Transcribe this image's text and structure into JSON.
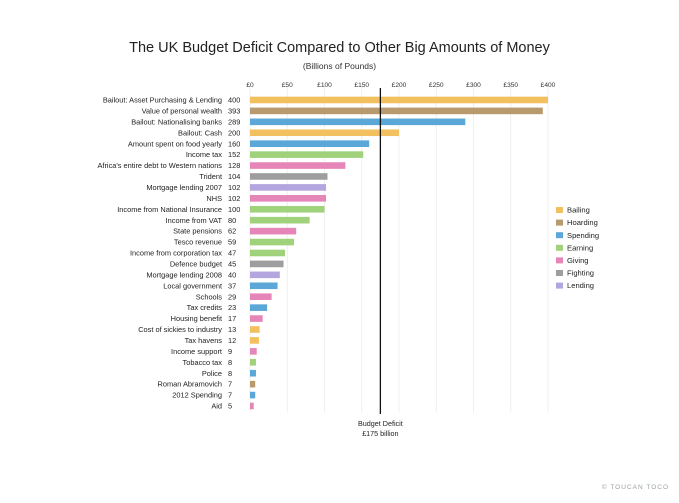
{
  "chart_data": {
    "type": "bar",
    "orientation": "horizontal",
    "title": "The UK Budget Deficit Compared to Other Big Amounts of Money",
    "subtitle": "(Billions of Pounds)",
    "xlim": [
      0,
      400
    ],
    "xticks": [
      {
        "value": 0,
        "label": "£0"
      },
      {
        "value": 50,
        "label": "£50"
      },
      {
        "value": 100,
        "label": "£100"
      },
      {
        "value": 150,
        "label": "£150"
      },
      {
        "value": 200,
        "label": "£200"
      },
      {
        "value": 250,
        "label": "£250"
      },
      {
        "value": 300,
        "label": "£300"
      },
      {
        "value": 350,
        "label": "£350"
      },
      {
        "value": 400,
        "label": "£400"
      }
    ],
    "grid": true,
    "legend_position": "right",
    "groups": [
      {
        "name": "Bailing",
        "color": "#f3c05f"
      },
      {
        "name": "Hoarding",
        "color": "#b89a6e"
      },
      {
        "name": "Spending",
        "color": "#5aa7d8"
      },
      {
        "name": "Earning",
        "color": "#9fd27a"
      },
      {
        "name": "Giving",
        "color": "#e685b8"
      },
      {
        "name": "Fighting",
        "color": "#9e9e9e"
      },
      {
        "name": "Lending",
        "color": "#b3a6df"
      }
    ],
    "bars": [
      {
        "label": "Bailout: Asset Purchasing & Lending",
        "value": 400,
        "value_label": "400",
        "group": "Bailing"
      },
      {
        "label": "Value of personal wealth",
        "value": 393,
        "value_label": "393",
        "group": "Hoarding"
      },
      {
        "label": "Bailout: Nationalising banks",
        "value": 289,
        "value_label": "289",
        "group": "Spending"
      },
      {
        "label": "Bailout: Cash",
        "value": 200,
        "value_label": "200",
        "group": "Bailing"
      },
      {
        "label": "Amount spent on food yearly",
        "value": 160,
        "value_label": "160",
        "group": "Spending"
      },
      {
        "label": "Income tax",
        "value": 152,
        "value_label": "152",
        "group": "Earning"
      },
      {
        "label": "Africa's entire debt to Western nations",
        "value": 128,
        "value_label": "128",
        "group": "Giving"
      },
      {
        "label": "Trident",
        "value": 104,
        "value_label": "104",
        "group": "Fighting"
      },
      {
        "label": "Mortgage lending 2007",
        "value": 102,
        "value_label": "102",
        "group": "Lending"
      },
      {
        "label": "NHS",
        "value": 102,
        "value_label": "102",
        "group": "Giving"
      },
      {
        "label": "Income from National Insurance",
        "value": 100,
        "value_label": "100",
        "group": "Earning"
      },
      {
        "label": "Income from VAT",
        "value": 80,
        "value_label": "80",
        "group": "Earning"
      },
      {
        "label": "State pensions",
        "value": 62,
        "value_label": "62",
        "group": "Giving"
      },
      {
        "label": "Tesco revenue",
        "value": 59,
        "value_label": "59",
        "group": "Earning"
      },
      {
        "label": "Income from corporation tax",
        "value": 47,
        "value_label": "47",
        "group": "Earning"
      },
      {
        "label": "Defence budget",
        "value": 45,
        "value_label": "45",
        "group": "Fighting"
      },
      {
        "label": "Mortgage lending 2008",
        "value": 40,
        "value_label": "40",
        "group": "Lending"
      },
      {
        "label": "Local government",
        "value": 37,
        "value_label": "37",
        "group": "Spending"
      },
      {
        "label": "Schools",
        "value": 29,
        "value_label": "29",
        "group": "Giving"
      },
      {
        "label": "Tax credits",
        "value": 23,
        "value_label": "23",
        "group": "Spending"
      },
      {
        "label": "Housing benefit",
        "value": 17,
        "value_label": "17",
        "group": "Giving"
      },
      {
        "label": "Cost of sickies to industry",
        "value": 13,
        "value_label": "13",
        "group": "Bailing"
      },
      {
        "label": "Tax havens",
        "value": 12,
        "value_label": "12",
        "group": "Bailing"
      },
      {
        "label": "Income support",
        "value": 9,
        "value_label": "9",
        "group": "Giving"
      },
      {
        "label": "Tobacco tax",
        "value": 8,
        "value_label": "8",
        "group": "Earning"
      },
      {
        "label": "Police",
        "value": 8,
        "value_label": "8",
        "group": "Spending"
      },
      {
        "label": "Roman Abramovich",
        "value": 7,
        "value_label": "7",
        "group": "Hoarding"
      },
      {
        "label": "2012 Spending",
        "value": 7,
        "value_label": "7",
        "group": "Spending"
      },
      {
        "label": "Aid",
        "value": 5,
        "value_label": "5",
        "group": "Giving"
      }
    ],
    "reference_line": {
      "value": 175,
      "label_line1": "Budget Deficit",
      "label_line2": "£175 billion"
    }
  },
  "credit": "© TOUCAN TOCO"
}
